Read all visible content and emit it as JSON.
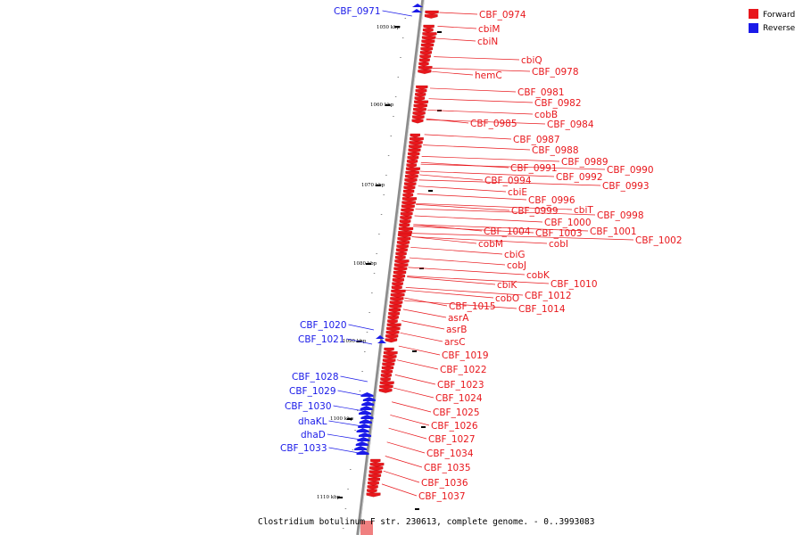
{
  "caption": "Clostridium botulinum F str. 230613, complete genome. - 0..3993083",
  "colors": {
    "forward": "#e8171c",
    "reverse": "#1a1ae8",
    "backbone": "#8c8c8c"
  },
  "legend": [
    {
      "label": "Forward",
      "color": "#e8171c"
    },
    {
      "label": "Reverse",
      "color": "#1a1ae8"
    }
  ],
  "kbp_labels": [
    "1050 kbp",
    "1060 kbp",
    "1070 kbp",
    "1080 kbp",
    "1090 kbp",
    "1100 kbp",
    "1110 kbp"
  ],
  "forward_genes": [
    "CBF_0974",
    "cbiM",
    "cbiN",
    "cbiQ",
    "CBF_0978",
    "hemC",
    "CBF_0981",
    "CBF_0982",
    "cobB",
    "CBF_0985",
    "CBF_0984",
    "CBF_0987",
    "CBF_0988",
    "CBF_0989",
    "CBF_0990",
    "CBF_0991",
    "CBF_0992",
    "CBF_0994",
    "CBF_0993",
    "cbiE",
    "CBF_0996",
    "cbiT",
    "CBF_0999",
    "CBF_0998",
    "CBF_1000",
    "CBF_1004",
    "CBF_1003",
    "CBF_1001",
    "CBF_1002",
    "cobM",
    "cobI",
    "cbiG",
    "cobJ",
    "cobK",
    "cbiK",
    "CBF_1010",
    "CBF_1012",
    "cobO",
    "CBF_1015",
    "CBF_1014",
    "asrA",
    "asrB",
    "arsC",
    "CBF_1019",
    "CBF_1022",
    "CBF_1023",
    "CBF_1024",
    "CBF_1025",
    "CBF_1026",
    "CBF_1027",
    "CBF_1034",
    "CBF_1035",
    "CBF_1036",
    "CBF_1037"
  ],
  "reverse_genes": [
    "CBF_0971",
    "CBF_1020",
    "CBF_1021",
    "CBF_1028",
    "CBF_1029",
    "CBF_1030",
    "dhaKL",
    "dhaD",
    "CBF_1033"
  ]
}
